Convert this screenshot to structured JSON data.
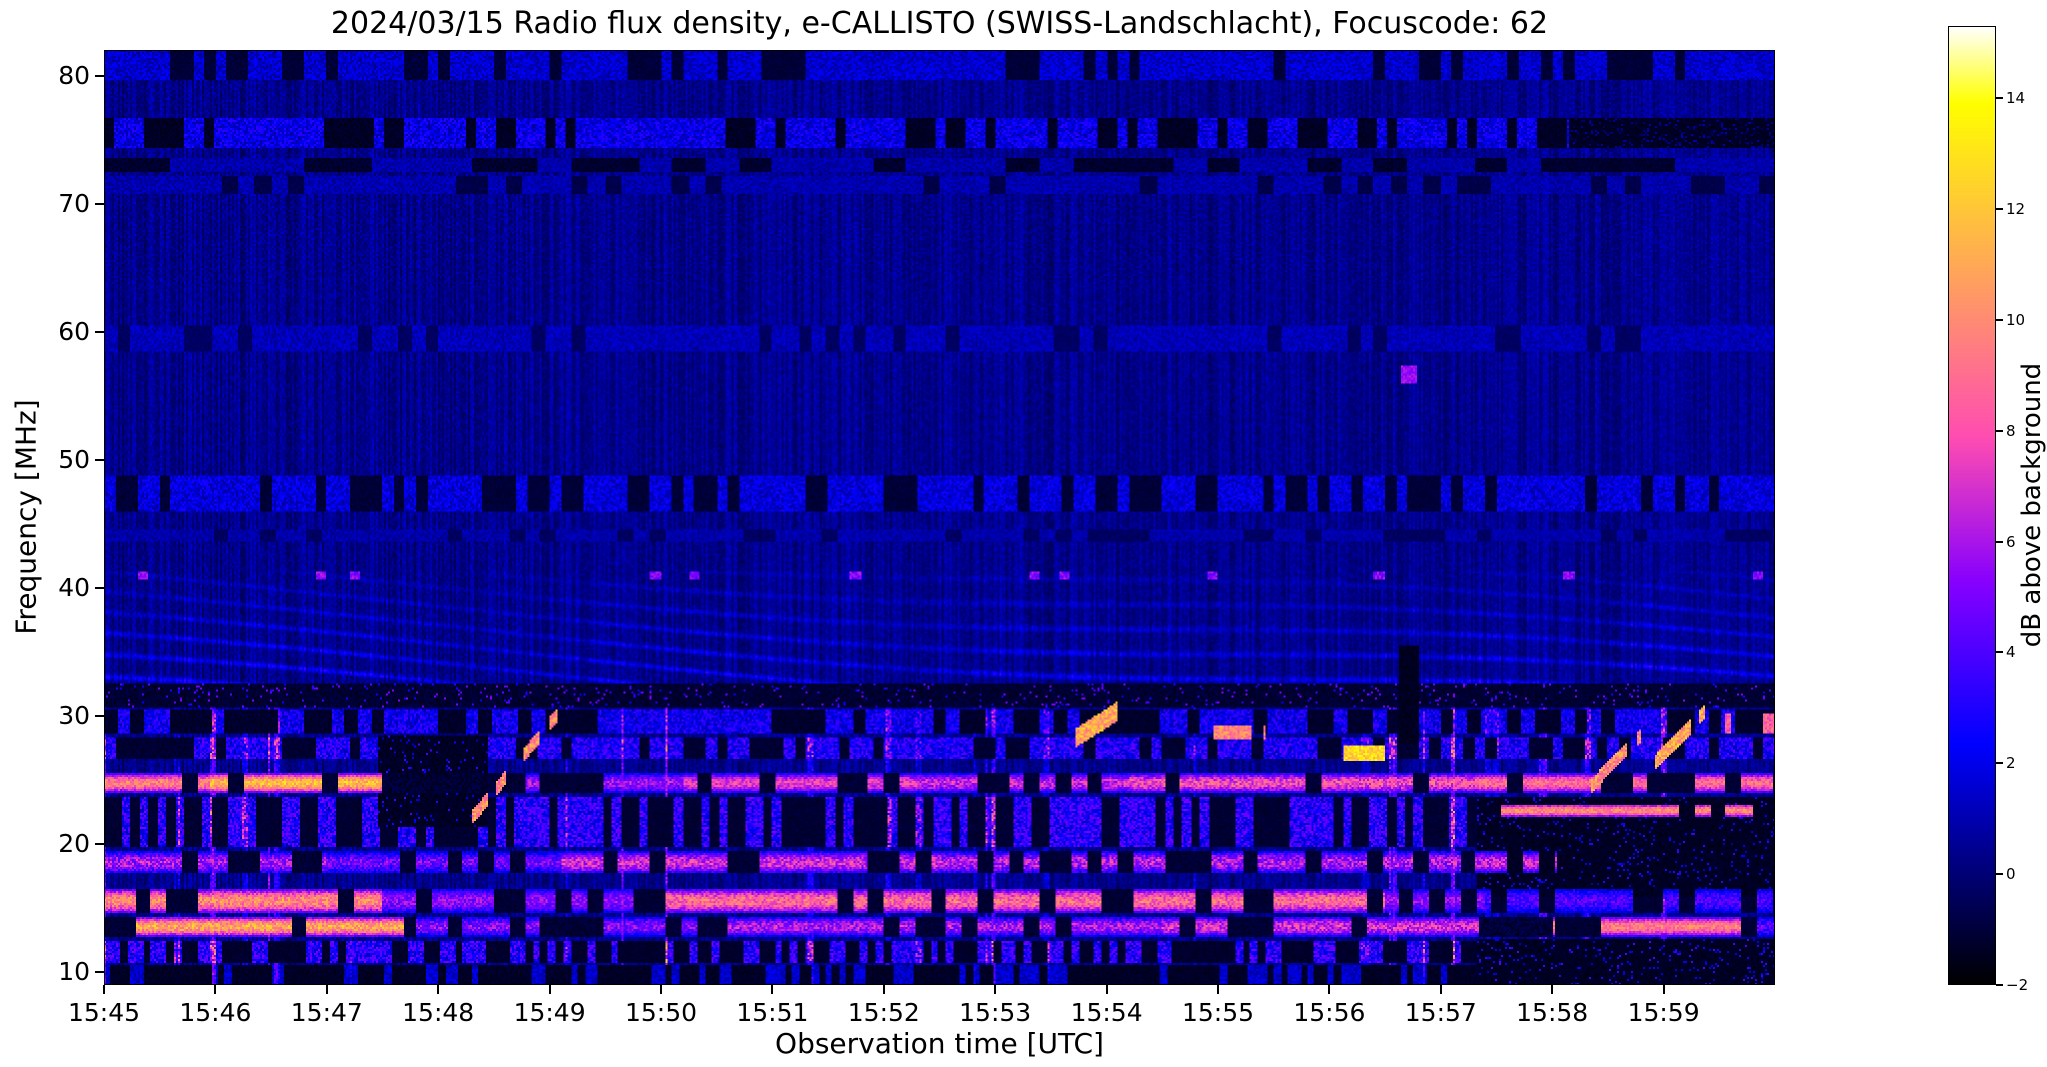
{
  "chart_data": {
    "type": "heatmap",
    "title": "2024/03/15  Radio flux density, e-CALLISTO (SWISS-Landschlacht), Focuscode: 62",
    "xlabel": "Observation time [UTC]",
    "ylabel": "Frequency [MHz]",
    "colorbar_label": "dB above background",
    "x_ticks": [
      "15:45",
      "15:46",
      "15:47",
      "15:48",
      "15:49",
      "15:50",
      "15:51",
      "15:52",
      "15:53",
      "15:54",
      "15:55",
      "15:56",
      "15:57",
      "15:58",
      "15:59"
    ],
    "x_tick_minutes": [
      0,
      1,
      2,
      3,
      4,
      5,
      6,
      7,
      8,
      9,
      10,
      11,
      12,
      13,
      14
    ],
    "time_span_minutes": 15.0,
    "y_ticks": [
      10,
      20,
      30,
      40,
      50,
      60,
      70,
      80
    ],
    "freq_range": [
      9.0,
      82.0
    ],
    "value_range": [
      -2,
      15.3
    ],
    "colorbar_tick_values": [
      14,
      12,
      10,
      8,
      6,
      4,
      2,
      0,
      -2
    ],
    "colorbar_tick_labels": [
      "14",
      "12",
      "10",
      "8",
      "6",
      "4",
      "2",
      "0",
      "−2"
    ],
    "colormap": "gnuplot2",
    "grid": false,
    "seed": 7,
    "resolution": {
      "cols": 836,
      "rows": 468
    },
    "background": {
      "base": -0.55,
      "col_amp": 1.25,
      "noise_amp": 0.95
    },
    "burst_columns": {
      "p_start": 0.05,
      "max_len": 4,
      "amp_lo": 1.5,
      "amp_hi": 5,
      "f_max": 30.8
    },
    "wave_region": {
      "f": [
        32.6,
        41.3
      ],
      "amp": 2.3,
      "kf": 0.6,
      "kt": 0.33,
      "mod": 0.65,
      "modk": 0.48
    },
    "bands": [
      {
        "n": "top-edge-speckle",
        "m": "sp",
        "f": [
          79.6,
          82.0
        ],
        "amp": 2.0,
        "gap": 0.3,
        "dark": -1.3,
        "dash": 0.1
      },
      {
        "n": "band-75MHz",
        "m": "sp",
        "f": [
          74.4,
          76.7
        ],
        "amp": 2.8,
        "gap": 0.32,
        "dark": -1.6,
        "dash": 0.09,
        "dark_after": 13.15
      },
      {
        "n": "band-73MHz-dashed",
        "m": "dd",
        "f": [
          72.5,
          73.6
        ],
        "seg": 0.3,
        "p": 0.5,
        "dark": -1.5
      },
      {
        "n": "band-71MHz",
        "m": "sp",
        "f": [
          70.7,
          72.1
        ],
        "amp": 1.3,
        "gap": 0.3,
        "dark": -1.0,
        "dash": 0.15
      },
      {
        "n": "band-59MHz",
        "m": "sp",
        "f": [
          58.5,
          60.5
        ],
        "amp": 1.5,
        "gap": 0.22,
        "dark": -0.6,
        "dash": 0.12
      },
      {
        "n": "band-47MHz",
        "m": "sp",
        "f": [
          45.9,
          48.7
        ],
        "amp": 2.4,
        "gap": 0.28,
        "dark": -1.3,
        "dash": 0.1
      },
      {
        "n": "band-44MHz",
        "m": "sp",
        "f": [
          43.7,
          44.5
        ],
        "amp": 1.2,
        "gap": 0.25,
        "dark": -0.6,
        "dash": 0.14
      },
      {
        "n": "band-31MHz-dark",
        "m": "dk",
        "f": [
          30.7,
          32.6
        ],
        "dark": -1.5,
        "sparkP": 0.05,
        "sparkV": 4.5
      },
      {
        "n": "band-29MHz",
        "m": "sp",
        "f": [
          28.7,
          30.5
        ],
        "amp": 3.2,
        "gap": 0.5,
        "dark": -1.5,
        "dash": 0.12
      },
      {
        "n": "band-27MHz",
        "m": "sp",
        "f": [
          26.7,
          28.4
        ],
        "amp": 3.8,
        "gap": 0.42,
        "dark": -1.4,
        "dash": 0.1
      },
      {
        "n": "band-21MHz",
        "m": "sp",
        "f": [
          19.7,
          23.6
        ],
        "amp": 4.2,
        "gap": 0.5,
        "dark": -1.4,
        "dash": 0.08
      },
      {
        "n": "dark-patch-1548",
        "m": "patch",
        "t": [
          2.45,
          3.45
        ],
        "f": [
          21.3,
          28.5
        ],
        "base": -1.6,
        "speck": 0.05,
        "speckV": 3.5
      },
      {
        "n": "band-24.7MHz",
        "m": "seg",
        "f": [
          24.0,
          25.5
        ],
        "segs": [
          [
            0,
            0.95,
            8,
            11.5,
            0.08
          ],
          [
            0.95,
            2.5,
            10,
            13.5,
            0.05
          ],
          [
            2.5,
            3.4,
            -1.6,
            -0.6,
            0
          ],
          [
            3.4,
            5.2,
            4,
            7.5,
            0.3
          ],
          [
            5.2,
            7.3,
            6,
            9,
            0.25
          ],
          [
            7.3,
            9.2,
            5,
            8.5,
            0.3
          ],
          [
            9.2,
            12.3,
            6,
            10,
            0.3
          ],
          [
            12.3,
            15.1,
            7.5,
            10.5,
            0.48
          ]
        ]
      },
      {
        "n": "black-patch-right",
        "m": "patch",
        "t": [
          12.32,
          15.1
        ],
        "f": [
          15.9,
          23.7
        ],
        "base": -1.65,
        "speck": 0.05,
        "speckV": 3
      },
      {
        "n": "band-22.6MHz-right",
        "m": "seg",
        "f": [
          22.1,
          23.1
        ],
        "segs": [
          [
            12.55,
            14.8,
            8.5,
            11.5,
            0.06
          ]
        ]
      },
      {
        "n": "band-18.5MHz",
        "m": "seg",
        "f": [
          17.7,
          19.4
        ],
        "segs": [
          [
            0,
            2.0,
            4,
            8,
            0.35
          ],
          [
            2.0,
            4.1,
            3,
            6.5,
            0.45
          ],
          [
            4.1,
            7.5,
            5,
            9,
            0.4
          ],
          [
            7.5,
            12.3,
            4,
            8.5,
            0.45
          ],
          [
            12.3,
            13.05,
            5,
            8.5,
            0.3
          ]
        ]
      },
      {
        "n": "band-15.5MHz",
        "m": "seg",
        "f": [
          14.6,
          16.5
        ],
        "segs": [
          [
            0,
            2.5,
            8,
            12,
            0.14
          ],
          [
            2.5,
            5,
            4,
            7,
            0.38
          ],
          [
            5,
            8,
            7,
            11,
            0.3
          ],
          [
            8,
            11.5,
            7,
            11,
            0.28
          ],
          [
            11.5,
            12.4,
            4,
            7,
            0.4
          ],
          [
            12.4,
            15.1,
            2.5,
            5.5,
            0.5
          ]
        ]
      },
      {
        "n": "band-13.5MHz",
        "m": "seg",
        "f": [
          12.8,
          14.3
        ],
        "segs": [
          [
            0,
            2.7,
            9,
            13,
            0.1
          ],
          [
            2.7,
            5.5,
            3.5,
            7,
            0.42
          ],
          [
            5.5,
            9.5,
            4,
            8,
            0.38
          ],
          [
            9.5,
            12.35,
            5,
            9,
            0.32
          ],
          [
            12.35,
            13.0,
            -1.6,
            -0.4,
            0
          ],
          [
            13.0,
            14.7,
            8,
            11,
            0.08
          ],
          [
            14.7,
            15.1,
            2.5,
            6,
            0.4
          ]
        ]
      },
      {
        "n": "black-patch-bottom-right",
        "m": "patch",
        "t": [
          12.32,
          15.1
        ],
        "f": [
          9,
          12.6
        ],
        "base": -1.65,
        "speck": 0.07,
        "speckV": 3.5
      },
      {
        "n": "band-11.5MHz",
        "m": "sp",
        "f": [
          10.7,
          12.5
        ],
        "amp": 4.2,
        "gap": 0.52,
        "dark": -1.5,
        "dash": 0.07,
        "t_end": 12.32
      },
      {
        "n": "bottom-edge",
        "m": "sp",
        "f": [
          9,
          10.6
        ],
        "amp": 2.0,
        "gap": 0.6,
        "dark": -1.6,
        "dash": 0.06,
        "t_end": 12.32
      }
    ],
    "events": [
      {
        "n": "diagonal-burst-1549",
        "m": "diag",
        "t": [
          3.3,
          4.08
        ],
        "f0": 22.0,
        "slope": 10.5,
        "w": 0.55,
        "lo": 8,
        "hi": 12,
        "gap": 0.15
      },
      {
        "n": "bright-arc-1553.8",
        "m": "diag",
        "t": [
          8.72,
          9.1
        ],
        "f0": 28.3,
        "slope": 5.5,
        "w": 0.75,
        "lo": 9,
        "hi": 13,
        "gap": 0.1
      },
      {
        "n": "orange-dashes-1555",
        "m": "h",
        "t": [
          9.95,
          10.42
        ],
        "f": [
          28.2,
          29.3
        ],
        "lo": 8,
        "hi": 11.5,
        "gap": 0.3
      },
      {
        "n": "yellow-blob-1556",
        "m": "h",
        "t": [
          11.12,
          11.5
        ],
        "f": [
          26.5,
          27.7
        ],
        "lo": 11,
        "hi": 14.2,
        "gap": 0.08
      },
      {
        "n": "diagonal-burst-1558.4",
        "m": "diag",
        "t": [
          13.35,
          13.8
        ],
        "f0": 24.5,
        "slope": 9,
        "w": 0.55,
        "lo": 8,
        "hi": 12,
        "gap": 0.15
      },
      {
        "n": "diagonal-burst-1559",
        "m": "diag",
        "t": [
          13.92,
          14.38
        ],
        "f0": 26.3,
        "slope": 9,
        "w": 0.6,
        "lo": 9,
        "hi": 13,
        "gap": 0.12
      },
      {
        "n": "orange-dashes-1559.5",
        "m": "h",
        "t": [
          14.55,
          15.05
        ],
        "f": [
          28.6,
          30.2
        ],
        "lo": 7,
        "hi": 10,
        "gap": 0.45
      },
      {
        "n": "dark-notch-1556.7",
        "m": "darkv",
        "t": [
          11.62,
          11.8
        ],
        "f": [
          27.8,
          35.5
        ]
      },
      {
        "n": "blue-dot-56MHz",
        "m": "h",
        "t": [
          11.64,
          11.78
        ],
        "f": [
          55.9,
          57.3
        ],
        "lo": 5,
        "hi": 6.5,
        "gap": 0
      }
    ],
    "rfi_dots_41mhz": {
      "f": [
        40.6,
        41.3
      ],
      "times": [
        0.35,
        1.95,
        2.25,
        4.95,
        5.3,
        6.75,
        8.35,
        8.62,
        9.95,
        11.45,
        13.15,
        14.85
      ],
      "w": 0.05,
      "lo": 4,
      "hi": 6.5
    }
  }
}
